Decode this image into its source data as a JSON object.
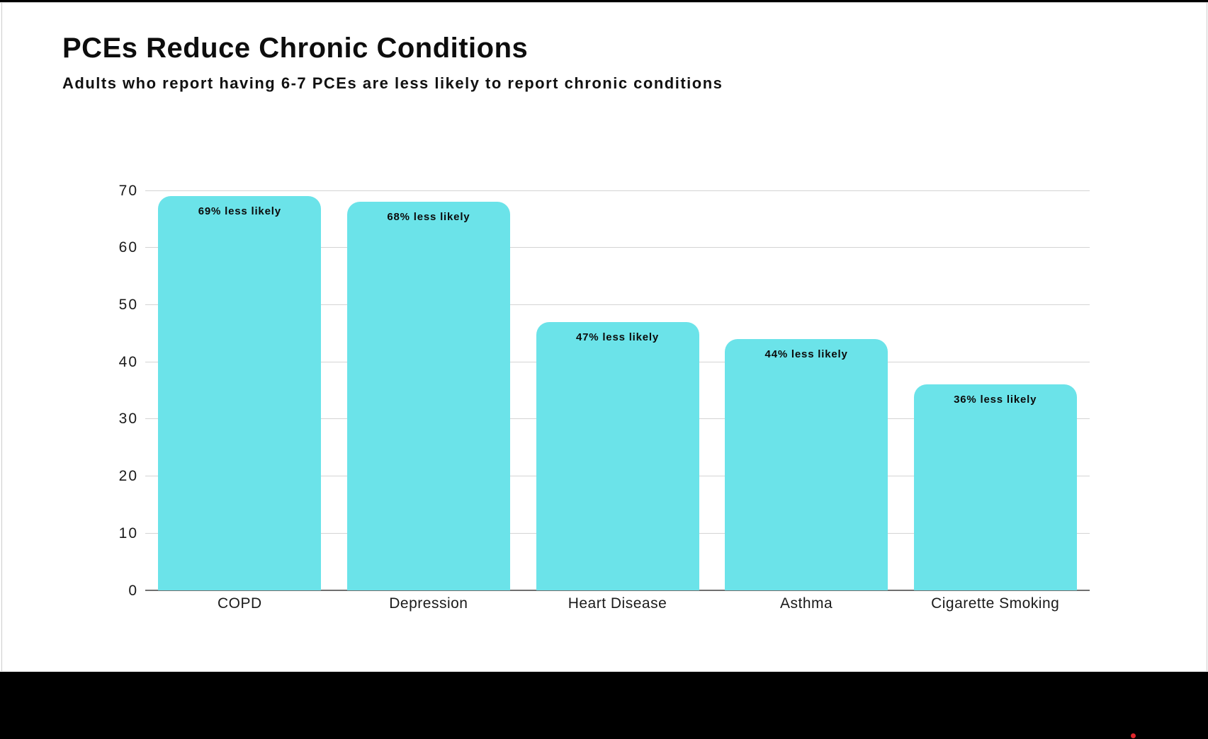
{
  "header": {
    "title": "PCEs Reduce Chronic Conditions",
    "subtitle": "Adults who report having 6-7 PCEs are less likely to report chronic conditions"
  },
  "chart_data": {
    "type": "bar",
    "categories": [
      "COPD",
      "Depression",
      "Heart Disease",
      "Asthma",
      "Cigarette Smoking"
    ],
    "values": [
      69,
      68,
      47,
      44,
      36
    ],
    "bar_labels": [
      "69% less likely",
      "68% less likely",
      "47% less likely",
      "44% less likely",
      "36% less likely"
    ],
    "title": "PCEs Reduce Chronic Conditions",
    "subtitle": "Adults who report having 6-7 PCEs are less likely to report chronic conditions",
    "xlabel": "",
    "ylabel": "",
    "ylim": [
      0,
      70
    ],
    "yticks": [
      0,
      10,
      20,
      30,
      40,
      50,
      60,
      70
    ],
    "grid": "horizontal",
    "legend": "none",
    "colors": {
      "bar": "#6BE3E9",
      "gridline": "#D4D4D4",
      "axis_line": "#707070",
      "tick_text": "#1A1A1A",
      "bar_label_text": "#0B0B0B",
      "footer_band": "#000000",
      "logo_dot": "#E0262B"
    }
  },
  "footer": {
    "band_color": "#000000"
  }
}
